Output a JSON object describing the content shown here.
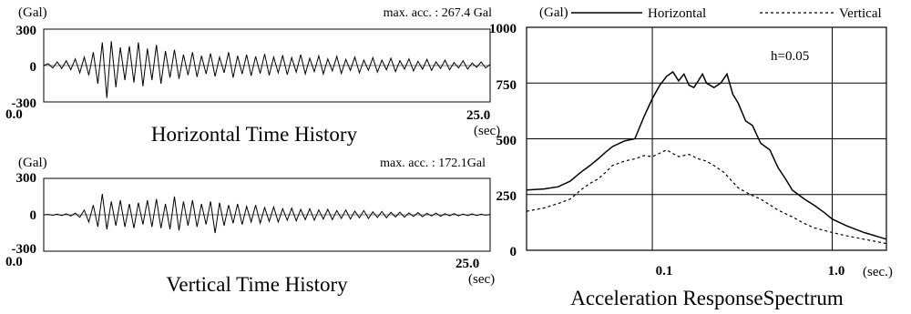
{
  "chart_data": [
    {
      "type": "line",
      "title": "Horizontal Time History",
      "annotation": "max. acc. : 267.4 Gal",
      "y_unit": "(Gal)",
      "x_unit": "(sec)",
      "x_ticks": [
        "0.0",
        "25.0"
      ],
      "y_ticks": [
        "300",
        "0",
        "-300"
      ],
      "xlim": [
        0,
        25
      ],
      "ylim": [
        -300,
        300
      ],
      "peak_abs": 267.4,
      "series": [
        {
          "values": [
            0,
            15,
            -20,
            30,
            -25,
            40,
            -35,
            55,
            -60,
            70,
            -80,
            110,
            -150,
            190,
            -267,
            200,
            -180,
            150,
            -120,
            160,
            -140,
            190,
            -170,
            140,
            -120,
            170,
            -150,
            120,
            -100,
            130,
            -110,
            90,
            -80,
            110,
            -95,
            80,
            -70,
            100,
            -90,
            70,
            -60,
            110,
            -100,
            80,
            -70,
            90,
            -85,
            75,
            -65,
            95,
            -80,
            70,
            -60,
            85,
            -75,
            65,
            -55,
            90,
            -70,
            60,
            -50,
            80,
            -70,
            55,
            -45,
            75,
            -65,
            50,
            -40,
            70,
            -60,
            45,
            -40,
            65,
            -55,
            45,
            -35,
            60,
            -50,
            40,
            -30,
            55,
            -45,
            35,
            -30,
            50,
            -40,
            30,
            -25,
            45,
            -35,
            25,
            -20,
            40,
            -30,
            20,
            -15,
            30,
            -20,
            10
          ]
        }
      ]
    },
    {
      "type": "line",
      "title": "Vertical Time History",
      "annotation": "max. acc. : 172.1Gal",
      "y_unit": "(Gal)",
      "x_unit": "(sec)",
      "x_ticks": [
        "0.0",
        "25.0"
      ],
      "y_ticks": [
        "300",
        "0",
        "-300"
      ],
      "xlim": [
        0,
        25
      ],
      "ylim": [
        -300,
        300
      ],
      "peak_abs": 172.1,
      "series": [
        {
          "values": [
            0,
            3,
            -4,
            5,
            -6,
            8,
            -10,
            14,
            -20,
            40,
            -60,
            80,
            -100,
            172,
            -120,
            110,
            -90,
            120,
            -100,
            90,
            -110,
            100,
            -80,
            120,
            -100,
            130,
            -110,
            90,
            -120,
            150,
            -130,
            110,
            -90,
            120,
            -100,
            90,
            -80,
            110,
            -150,
            100,
            -90,
            80,
            -70,
            90,
            -80,
            70,
            -60,
            80,
            -70,
            60,
            -55,
            65,
            -60,
            50,
            -45,
            55,
            -50,
            45,
            -40,
            50,
            -45,
            40,
            -35,
            45,
            -40,
            35,
            -30,
            40,
            -35,
            30,
            -25,
            35,
            -30,
            25,
            -22,
            28,
            -25,
            20,
            -18,
            22,
            -20,
            16,
            -14,
            18,
            -16,
            12,
            -10,
            14,
            -12,
            9,
            -8,
            10,
            -9,
            7,
            -6,
            8,
            -6,
            5,
            -4,
            3
          ]
        }
      ]
    },
    {
      "type": "line",
      "title": "Acceleration ResponseSpectrum",
      "annotation": "h=0.05",
      "y_unit": "(Gal)",
      "x_unit": "(sec.)",
      "x_scale": "log",
      "xlim": [
        0.02,
        2.0
      ],
      "ylim": [
        0,
        1000
      ],
      "x_ticks": [
        "0.1",
        "1.0"
      ],
      "y_ticks": [
        "1000",
        "750",
        "500",
        "250",
        "0"
      ],
      "grid": true,
      "legend_position": "top",
      "series": [
        {
          "name": "Horizontal",
          "style": "solid",
          "x": [
            0.02,
            0.025,
            0.03,
            0.035,
            0.04,
            0.045,
            0.05,
            0.055,
            0.06,
            0.07,
            0.08,
            0.09,
            0.1,
            0.11,
            0.12,
            0.13,
            0.14,
            0.15,
            0.16,
            0.17,
            0.18,
            0.19,
            0.2,
            0.22,
            0.24,
            0.26,
            0.28,
            0.3,
            0.33,
            0.36,
            0.4,
            0.45,
            0.5,
            0.55,
            0.6,
            0.7,
            0.8,
            0.9,
            1.0,
            1.2,
            1.5,
            2.0
          ],
          "y": [
            270,
            275,
            285,
            310,
            350,
            380,
            410,
            440,
            465,
            490,
            500,
            600,
            680,
            740,
            780,
            800,
            760,
            790,
            740,
            730,
            760,
            790,
            750,
            730,
            750,
            790,
            700,
            660,
            580,
            560,
            480,
            450,
            370,
            320,
            270,
            230,
            200,
            170,
            140,
            110,
            80,
            50
          ]
        },
        {
          "name": "Vertical",
          "style": "dashed",
          "x": [
            0.02,
            0.025,
            0.03,
            0.035,
            0.04,
            0.045,
            0.05,
            0.055,
            0.06,
            0.07,
            0.08,
            0.09,
            0.1,
            0.12,
            0.14,
            0.16,
            0.18,
            0.2,
            0.22,
            0.25,
            0.3,
            0.35,
            0.4,
            0.5,
            0.6,
            0.7,
            0.8,
            1.0,
            1.2,
            1.5,
            2.0
          ],
          "y": [
            175,
            190,
            210,
            230,
            270,
            300,
            320,
            350,
            380,
            400,
            410,
            425,
            420,
            450,
            420,
            430,
            410,
            400,
            380,
            350,
            280,
            250,
            230,
            180,
            150,
            120,
            100,
            80,
            65,
            50,
            30
          ]
        }
      ]
    }
  ]
}
